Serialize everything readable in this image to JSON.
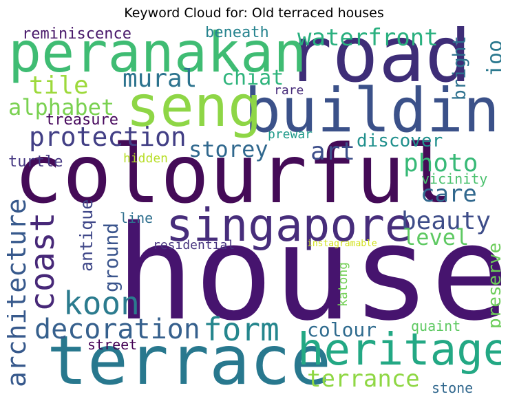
{
  "chart_data": {
    "type": "wordcloud",
    "title": "Keyword Cloud for: Old terraced houses",
    "colormap": "viridis",
    "words": [
      {
        "text": "house",
        "color": "#46146e"
      },
      {
        "text": "colourful",
        "color": "#440b57"
      },
      {
        "text": "road",
        "color": "#3e2d77"
      },
      {
        "text": "terrace",
        "color": "#28788e"
      },
      {
        "text": "building",
        "color": "#3b5189"
      },
      {
        "text": "seng",
        "color": "#8ed646"
      },
      {
        "text": "peranakan",
        "color": "#3fbc73"
      },
      {
        "text": "singapore",
        "color": "#472d7b"
      },
      {
        "text": "heritage",
        "color": "#23a884"
      },
      {
        "text": "coast",
        "color": "#472878"
      },
      {
        "text": "koon",
        "color": "#2b7b8e"
      },
      {
        "text": "form",
        "color": "#25868d"
      },
      {
        "text": "decoration",
        "color": "#36608d"
      },
      {
        "text": "architecture",
        "color": "#37598c"
      },
      {
        "text": "protection",
        "color": "#423f85"
      },
      {
        "text": "waterfront",
        "color": "#2ab07f"
      },
      {
        "text": "beauty",
        "color": "#3e4d89"
      },
      {
        "text": "photo",
        "color": "#38b977"
      },
      {
        "text": "tile",
        "color": "#9dd93b"
      },
      {
        "text": "mural",
        "color": "#2c738e"
      },
      {
        "text": "art",
        "color": "#3d4e8a"
      },
      {
        "text": "care",
        "color": "#31688e"
      },
      {
        "text": "terrance",
        "color": "#8fd744"
      },
      {
        "text": "alphabet",
        "color": "#7ad151"
      },
      {
        "text": "storey",
        "color": "#30688e"
      },
      {
        "text": "level",
        "color": "#5ec962"
      },
      {
        "text": "ground",
        "color": "#3a548c"
      },
      {
        "text": "antique",
        "color": "#3f4788"
      },
      {
        "text": "colour",
        "color": "#2f6b8e"
      },
      {
        "text": "chiat",
        "color": "#2fb47c"
      },
      {
        "text": "joo",
        "color": "#2a788e"
      },
      {
        "text": "bright",
        "color": "#2d718e"
      },
      {
        "text": "discover",
        "color": "#21908d"
      },
      {
        "text": "preserve",
        "color": "#6ccd5a"
      },
      {
        "text": "reminiscence",
        "color": "#48186a"
      },
      {
        "text": "beneath",
        "color": "#26838e"
      },
      {
        "text": "treasure",
        "color": "#46085c"
      },
      {
        "text": "turtle",
        "color": "#453781"
      },
      {
        "text": "vicinity",
        "color": "#4ac16d"
      },
      {
        "text": "stone",
        "color": "#31688e"
      },
      {
        "text": "quaint",
        "color": "#5ec962"
      },
      {
        "text": "prewar",
        "color": "#1f9a8a"
      },
      {
        "text": "line",
        "color": "#2e6f8e"
      },
      {
        "text": "hidden",
        "color": "#b8de29"
      },
      {
        "text": "street",
        "color": "#440154"
      },
      {
        "text": "katong",
        "color": "#73d056"
      },
      {
        "text": "residential",
        "color": "#46337f"
      },
      {
        "text": "rare",
        "color": "#472c7a"
      },
      {
        "text": "instagramable",
        "color": "#d2e21b"
      }
    ]
  }
}
